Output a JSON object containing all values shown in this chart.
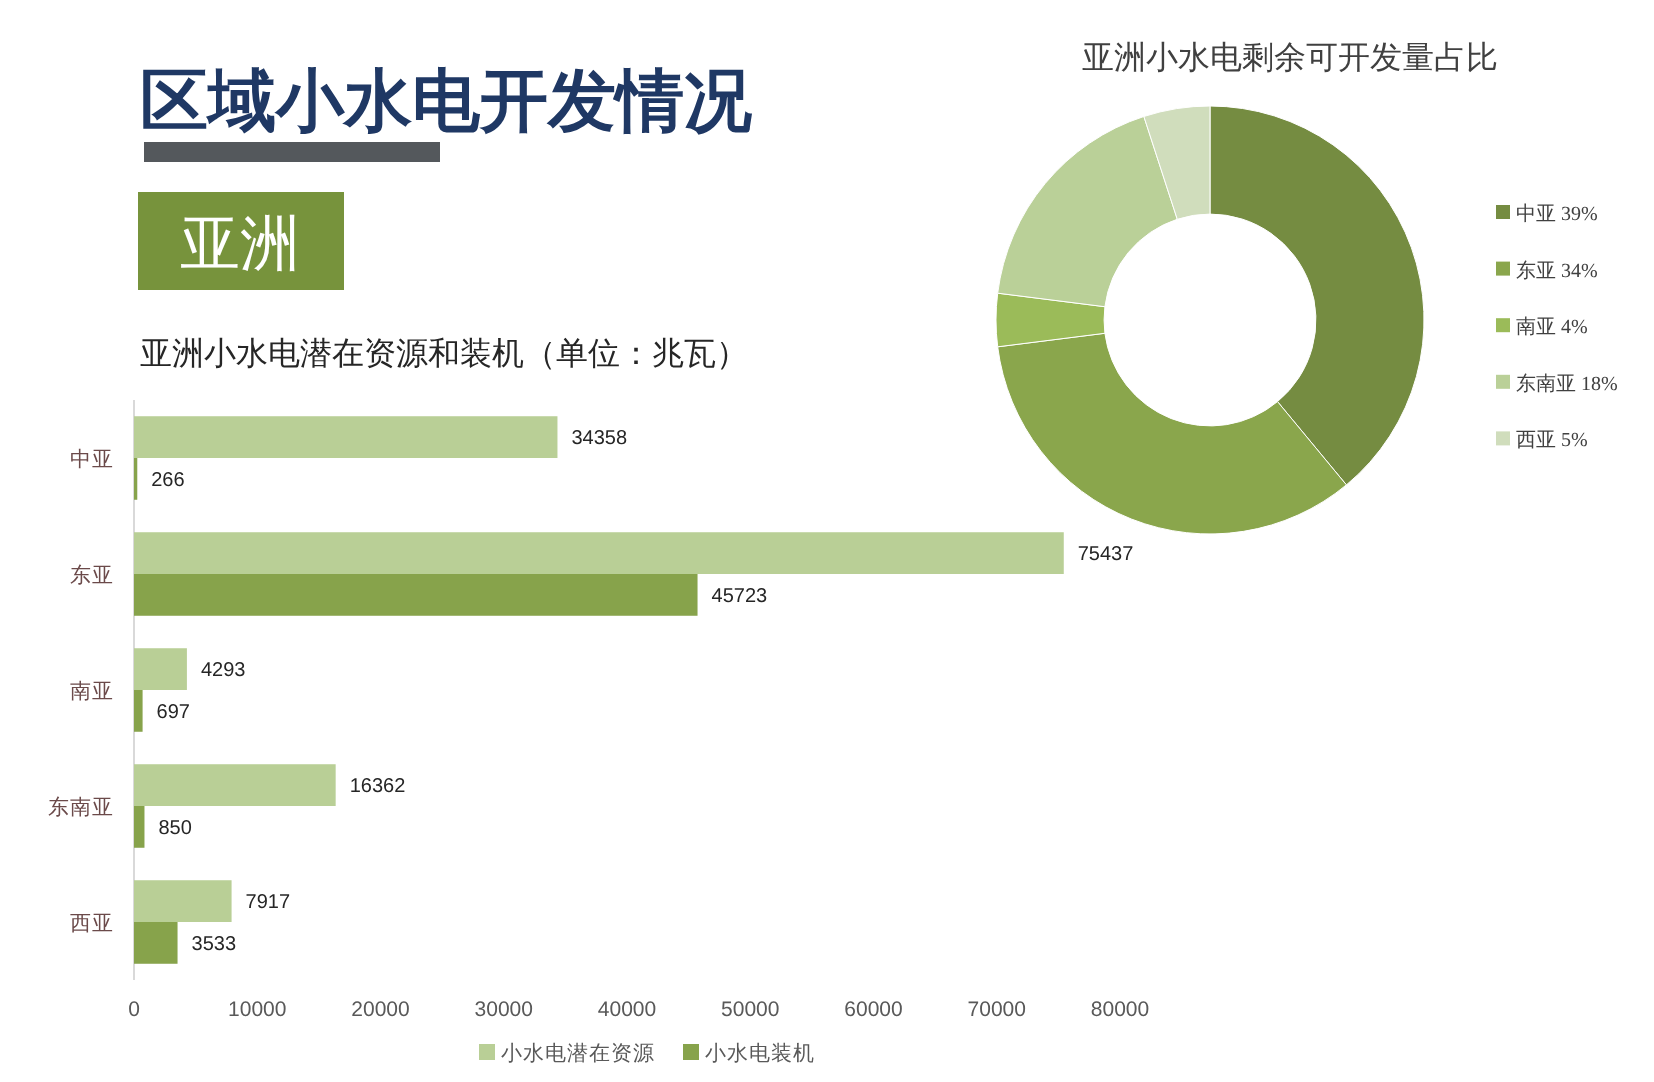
{
  "chart_data": [
    {
      "type": "other",
      "title": "区域小水电开发情况",
      "subtitle": "亚洲"
    },
    {
      "type": "bar",
      "orientation": "horizontal",
      "title": "亚洲小水电潜在资源和装机（单位：兆瓦）",
      "categories": [
        "中亚",
        "东亚",
        "南亚",
        "东南亚",
        "西亚"
      ],
      "series": [
        {
          "name": "小水电潜在资源",
          "color": "#b9cf96",
          "values": [
            34358,
            75437,
            4293,
            16362,
            7917
          ]
        },
        {
          "name": "小水电装机",
          "color": "#87a34b",
          "values": [
            266,
            45723,
            697,
            850,
            3533
          ]
        }
      ],
      "xlim": [
        0,
        80000
      ],
      "xticks": [
        0,
        10000,
        20000,
        30000,
        40000,
        50000,
        60000,
        70000,
        80000
      ],
      "data_labels": true,
      "legend": "bottom"
    },
    {
      "type": "donut",
      "title": "亚洲小水电剩余可开发量占比",
      "categories": [
        "中亚",
        "东亚",
        "南亚",
        "东南亚",
        "西亚"
      ],
      "values": [
        39,
        34,
        4,
        18,
        5
      ],
      "colors": [
        "#758c41",
        "#8aa64c",
        "#9bbb59",
        "#bad098",
        "#d0ddbc"
      ],
      "value_labels": [
        "39%",
        "34%",
        "4%",
        "18%",
        "5%"
      ],
      "legend": "right"
    }
  ]
}
